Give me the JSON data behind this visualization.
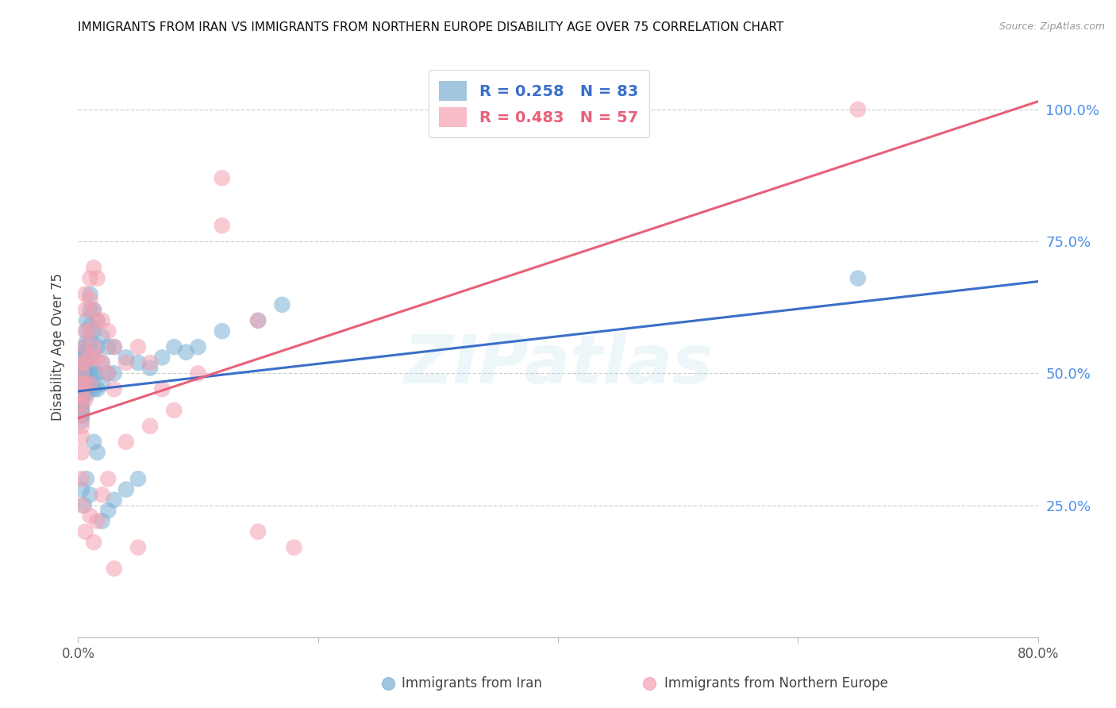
{
  "title": "IMMIGRANTS FROM IRAN VS IMMIGRANTS FROM NORTHERN EUROPE DISABILITY AGE OVER 75 CORRELATION CHART",
  "source": "Source: ZipAtlas.com",
  "ylabel": "Disability Age Over 75",
  "x_min": 0.0,
  "x_max": 0.8,
  "y_min": 0.0,
  "y_max": 1.1,
  "x_ticks": [
    0.0,
    0.2,
    0.4,
    0.6,
    0.8
  ],
  "x_tick_labels": [
    "0.0%",
    "",
    "",
    "",
    "80.0%"
  ],
  "y_tick_labels_right": [
    "100.0%",
    "75.0%",
    "50.0%",
    "25.0%"
  ],
  "y_tick_positions_right": [
    1.0,
    0.75,
    0.5,
    0.25
  ],
  "blue_R": 0.258,
  "blue_N": 83,
  "pink_R": 0.483,
  "pink_N": 57,
  "blue_color": "#7BAFD4",
  "pink_color": "#F4A0B0",
  "blue_line_color": "#3B6FC9",
  "pink_line_color": "#E8607A",
  "watermark_text": "ZIPatlas",
  "legend_label_blue": "Immigrants from Iran",
  "legend_label_pink": "Immigrants from Northern Europe",
  "blue_scatter_x": [
    0.003,
    0.003,
    0.003,
    0.003,
    0.003,
    0.003,
    0.003,
    0.003,
    0.003,
    0.003,
    0.003,
    0.003,
    0.003,
    0.003,
    0.003,
    0.003,
    0.003,
    0.003,
    0.003,
    0.003,
    0.005,
    0.005,
    0.005,
    0.005,
    0.005,
    0.005,
    0.005,
    0.005,
    0.005,
    0.005,
    0.007,
    0.007,
    0.007,
    0.007,
    0.007,
    0.007,
    0.007,
    0.007,
    0.01,
    0.01,
    0.01,
    0.01,
    0.01,
    0.01,
    0.01,
    0.013,
    0.013,
    0.013,
    0.013,
    0.013,
    0.016,
    0.016,
    0.016,
    0.016,
    0.02,
    0.02,
    0.02,
    0.025,
    0.025,
    0.03,
    0.03,
    0.04,
    0.05,
    0.06,
    0.07,
    0.08,
    0.09,
    0.1,
    0.12,
    0.15,
    0.17,
    0.65,
    0.003,
    0.005,
    0.007,
    0.01,
    0.013,
    0.016,
    0.02,
    0.025,
    0.03,
    0.04,
    0.05
  ],
  "blue_scatter_y": [
    0.5,
    0.5,
    0.5,
    0.49,
    0.49,
    0.48,
    0.48,
    0.47,
    0.47,
    0.46,
    0.46,
    0.45,
    0.45,
    0.44,
    0.44,
    0.43,
    0.43,
    0.42,
    0.42,
    0.41,
    0.55,
    0.54,
    0.53,
    0.52,
    0.51,
    0.5,
    0.49,
    0.48,
    0.47,
    0.46,
    0.6,
    0.58,
    0.56,
    0.54,
    0.52,
    0.5,
    0.48,
    0.46,
    0.65,
    0.62,
    0.59,
    0.56,
    0.53,
    0.5,
    0.47,
    0.62,
    0.58,
    0.54,
    0.5,
    0.47,
    0.6,
    0.55,
    0.5,
    0.47,
    0.57,
    0.52,
    0.48,
    0.55,
    0.5,
    0.55,
    0.5,
    0.53,
    0.52,
    0.51,
    0.53,
    0.55,
    0.54,
    0.55,
    0.58,
    0.6,
    0.63,
    0.68,
    0.28,
    0.25,
    0.3,
    0.27,
    0.37,
    0.35,
    0.22,
    0.24,
    0.26,
    0.28,
    0.3
  ],
  "pink_scatter_x": [
    0.003,
    0.003,
    0.003,
    0.003,
    0.003,
    0.003,
    0.003,
    0.003,
    0.003,
    0.003,
    0.006,
    0.006,
    0.006,
    0.006,
    0.006,
    0.006,
    0.006,
    0.01,
    0.01,
    0.01,
    0.01,
    0.01,
    0.013,
    0.013,
    0.013,
    0.016,
    0.016,
    0.016,
    0.02,
    0.02,
    0.025,
    0.025,
    0.03,
    0.03,
    0.04,
    0.05,
    0.06,
    0.07,
    0.08,
    0.1,
    0.12,
    0.15,
    0.003,
    0.006,
    0.01,
    0.013,
    0.016,
    0.02,
    0.025,
    0.03,
    0.04,
    0.05,
    0.06,
    0.65,
    0.12,
    0.15,
    0.18
  ],
  "pink_scatter_y": [
    0.52,
    0.5,
    0.48,
    0.46,
    0.44,
    0.42,
    0.4,
    0.38,
    0.35,
    0.3,
    0.65,
    0.62,
    0.58,
    0.55,
    0.52,
    0.48,
    0.45,
    0.68,
    0.64,
    0.58,
    0.53,
    0.48,
    0.7,
    0.62,
    0.55,
    0.68,
    0.6,
    0.53,
    0.6,
    0.52,
    0.58,
    0.5,
    0.55,
    0.47,
    0.52,
    0.55,
    0.52,
    0.47,
    0.43,
    0.5,
    0.87,
    0.6,
    0.25,
    0.2,
    0.23,
    0.18,
    0.22,
    0.27,
    0.3,
    0.13,
    0.37,
    0.17,
    0.4,
    1.0,
    0.78,
    0.2,
    0.17
  ],
  "blue_trendline_x": [
    0.0,
    0.8
  ],
  "blue_trendline_y": [
    0.466,
    0.674
  ],
  "pink_trendline_x": [
    0.0,
    0.8
  ],
  "pink_trendline_y": [
    0.415,
    1.015
  ],
  "grid_color": "#CCCCCC",
  "background_color": "#FFFFFF",
  "right_tick_color": "#4B8FE8"
}
